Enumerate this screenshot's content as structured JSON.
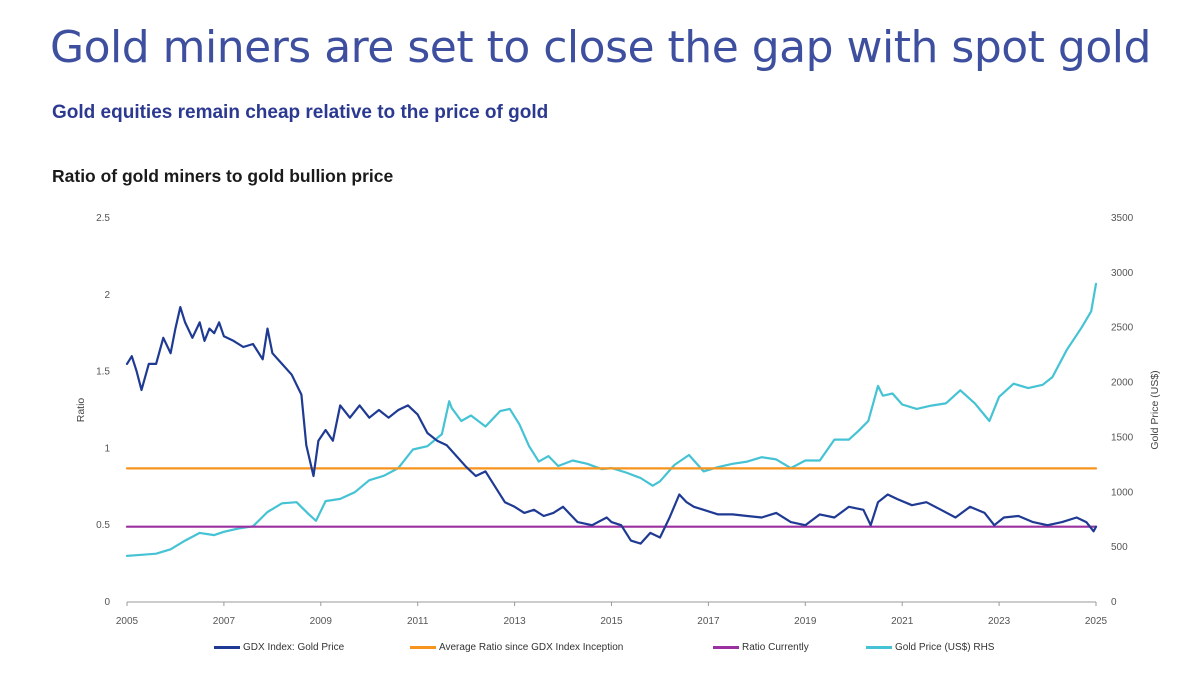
{
  "header": {
    "title": "Gold miners are set to close the gap with spot gold",
    "subtitle": "Gold equities remain cheap relative to the price of gold",
    "chart_title": "Ratio of gold miners to gold bullion price"
  },
  "chart_data": {
    "type": "line",
    "title": "Ratio of gold miners to gold bullion price",
    "xlabel": "",
    "ylabel": "Ratio",
    "y2label": "Gold Price (US$)",
    "xlim": [
      2005,
      2025
    ],
    "ylim": [
      0,
      2.5
    ],
    "y2lim": [
      0,
      3500
    ],
    "x_ticks": [
      "2005",
      "2007",
      "2009",
      "2011",
      "2013",
      "2015",
      "2017",
      "2019",
      "2021",
      "2023",
      "2025"
    ],
    "y_ticks": [
      "0",
      "0.5",
      "1",
      "1.5",
      "2",
      "2.5"
    ],
    "y2_ticks": [
      "0",
      "500",
      "1000",
      "1500",
      "2000",
      "2500",
      "3000",
      "3500"
    ],
    "grid": false,
    "legend_position": "bottom",
    "colors": {
      "ratio": "#1f3a93",
      "average": "#f7941d",
      "current": "#9b30a0",
      "gold": "#45c3d4"
    },
    "series": [
      {
        "name": "GDX Index: Gold Price",
        "axis": "left",
        "x": [
          2005.0,
          2005.1,
          2005.2,
          2005.3,
          2005.45,
          2005.6,
          2005.75,
          2005.9,
          2006.0,
          2006.1,
          2006.2,
          2006.35,
          2006.5,
          2006.6,
          2006.7,
          2006.8,
          2006.9,
          2007.0,
          2007.2,
          2007.4,
          2007.6,
          2007.8,
          2007.9,
          2008.0,
          2008.2,
          2008.4,
          2008.6,
          2008.7,
          2008.85,
          2008.95,
          2009.1,
          2009.25,
          2009.4,
          2009.6,
          2009.8,
          2010.0,
          2010.2,
          2010.4,
          2010.6,
          2010.8,
          2011.0,
          2011.2,
          2011.4,
          2011.6,
          2011.8,
          2012.0,
          2012.2,
          2012.4,
          2012.6,
          2012.8,
          2013.0,
          2013.2,
          2013.4,
          2013.6,
          2013.8,
          2014.0,
          2014.3,
          2014.6,
          2014.9,
          2015.0,
          2015.2,
          2015.4,
          2015.6,
          2015.8,
          2016.0,
          2016.2,
          2016.4,
          2016.55,
          2016.7,
          2016.9,
          2017.2,
          2017.5,
          2017.8,
          2018.1,
          2018.4,
          2018.7,
          2019.0,
          2019.3,
          2019.6,
          2019.9,
          2020.2,
          2020.35,
          2020.5,
          2020.7,
          2020.9,
          2021.2,
          2021.5,
          2021.8,
          2022.1,
          2022.4,
          2022.7,
          2022.9,
          2023.1,
          2023.4,
          2023.7,
          2024.0,
          2024.3,
          2024.6,
          2024.8,
          2024.95,
          2025.0
        ],
        "values": [
          1.55,
          1.6,
          1.5,
          1.38,
          1.55,
          1.55,
          1.72,
          1.62,
          1.78,
          1.92,
          1.82,
          1.72,
          1.82,
          1.7,
          1.78,
          1.75,
          1.82,
          1.73,
          1.7,
          1.66,
          1.68,
          1.58,
          1.78,
          1.62,
          1.55,
          1.48,
          1.35,
          1.02,
          0.82,
          1.05,
          1.12,
          1.05,
          1.28,
          1.2,
          1.28,
          1.2,
          1.25,
          1.2,
          1.25,
          1.28,
          1.22,
          1.1,
          1.05,
          1.02,
          0.95,
          0.88,
          0.82,
          0.85,
          0.75,
          0.65,
          0.62,
          0.58,
          0.6,
          0.56,
          0.58,
          0.62,
          0.52,
          0.5,
          0.55,
          0.52,
          0.5,
          0.4,
          0.38,
          0.45,
          0.42,
          0.55,
          0.7,
          0.65,
          0.62,
          0.6,
          0.57,
          0.57,
          0.56,
          0.55,
          0.58,
          0.52,
          0.5,
          0.57,
          0.55,
          0.62,
          0.6,
          0.5,
          0.65,
          0.7,
          0.67,
          0.63,
          0.65,
          0.6,
          0.55,
          0.62,
          0.58,
          0.5,
          0.55,
          0.56,
          0.52,
          0.5,
          0.52,
          0.55,
          0.52,
          0.46,
          0.49
        ]
      },
      {
        "name": "Average Ratio since GDX Index Inception",
        "axis": "left",
        "x": [
          2005,
          2025
        ],
        "values": [
          0.87,
          0.87
        ]
      },
      {
        "name": "Ratio Currently",
        "axis": "left",
        "x": [
          2005,
          2025
        ],
        "values": [
          0.49,
          0.49
        ]
      },
      {
        "name": "Gold Price (US$) RHS",
        "axis": "right",
        "x": [
          2005.0,
          2005.3,
          2005.6,
          2005.9,
          2006.2,
          2006.5,
          2006.8,
          2007.0,
          2007.3,
          2007.6,
          2007.9,
          2008.2,
          2008.5,
          2008.75,
          2008.9,
          2009.1,
          2009.4,
          2009.7,
          2010.0,
          2010.3,
          2010.6,
          2010.9,
          2011.2,
          2011.5,
          2011.65,
          2011.7,
          2011.9,
          2012.1,
          2012.4,
          2012.7,
          2012.9,
          2013.1,
          2013.3,
          2013.5,
          2013.7,
          2013.9,
          2014.2,
          2014.5,
          2014.8,
          2015.0,
          2015.3,
          2015.6,
          2015.85,
          2016.0,
          2016.3,
          2016.6,
          2016.9,
          2017.2,
          2017.5,
          2017.8,
          2018.1,
          2018.4,
          2018.7,
          2019.0,
          2019.3,
          2019.6,
          2019.9,
          2020.1,
          2020.3,
          2020.5,
          2020.6,
          2020.8,
          2021.0,
          2021.3,
          2021.6,
          2021.9,
          2022.2,
          2022.5,
          2022.8,
          2023.0,
          2023.3,
          2023.6,
          2023.9,
          2024.1,
          2024.4,
          2024.7,
          2024.9,
          2025.0
        ],
        "values": [
          420,
          430,
          440,
          480,
          560,
          630,
          610,
          640,
          670,
          690,
          820,
          900,
          910,
          800,
          740,
          920,
          940,
          1000,
          1110,
          1150,
          1220,
          1390,
          1420,
          1530,
          1830,
          1770,
          1650,
          1700,
          1600,
          1740,
          1760,
          1620,
          1420,
          1280,
          1330,
          1240,
          1290,
          1260,
          1210,
          1220,
          1180,
          1130,
          1060,
          1100,
          1250,
          1340,
          1190,
          1230,
          1260,
          1280,
          1320,
          1300,
          1220,
          1290,
          1290,
          1480,
          1480,
          1560,
          1650,
          1970,
          1880,
          1900,
          1800,
          1760,
          1790,
          1810,
          1930,
          1810,
          1650,
          1870,
          1990,
          1950,
          1980,
          2050,
          2300,
          2500,
          2650,
          2900
        ]
      }
    ]
  },
  "legend": {
    "items": [
      {
        "label": "GDX Index: Gold Price"
      },
      {
        "label": "Average Ratio since GDX Index Inception"
      },
      {
        "label": "Ratio Currently"
      },
      {
        "label": "Gold Price (US$) RHS"
      }
    ]
  }
}
